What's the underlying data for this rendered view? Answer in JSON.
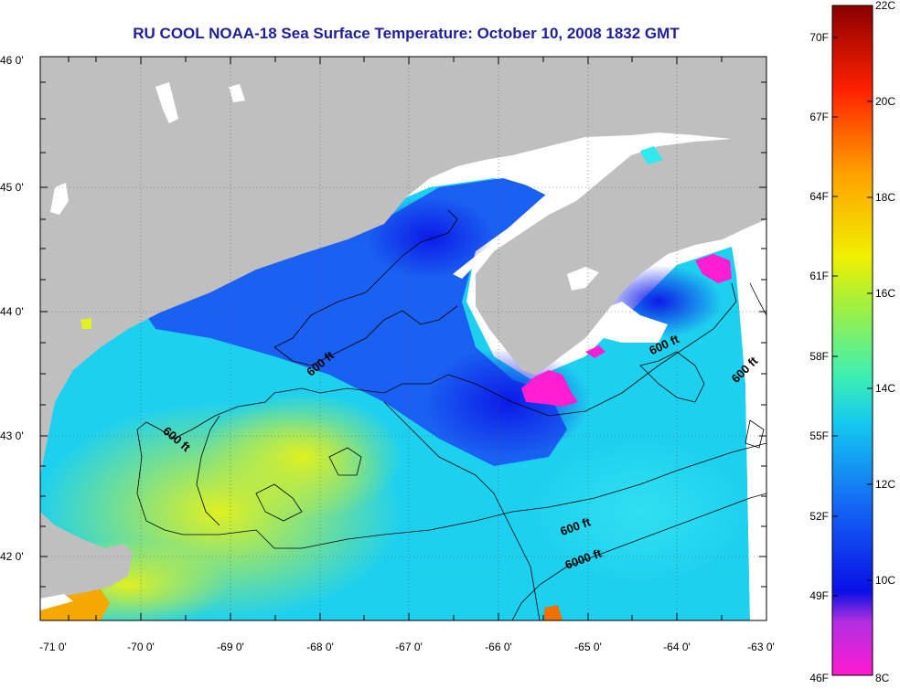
{
  "title": "RU COOL  NOAA-18  Sea Surface Temperature:  October 10, 2008 1832 GMT",
  "lat_labels": [
    "46 0'",
    "45 0'",
    "44 0'",
    "43 0'",
    "42 0'"
  ],
  "lon_labels": [
    "-71 0'",
    "-70 0'",
    "-69 0'",
    "-68 0'",
    "-67 0'",
    "-66 0'",
    "-65 0'",
    "-64 0'",
    "-63 0'"
  ],
  "contour_labels": [
    "600 ft",
    "600 ft",
    "600 ft",
    "600 ft",
    "600 ft",
    "6000 ft"
  ],
  "colorbar": {
    "celsius": [
      "22C",
      "20C",
      "18C",
      "16C",
      "14C",
      "12C",
      "10C",
      "8C"
    ],
    "fahrenheit": [
      "70F",
      "67F",
      "64F",
      "61F",
      "58F",
      "55F",
      "52F",
      "49F",
      "46F"
    ],
    "stops": [
      "#ff19d2",
      "#8a2be2",
      "#0a10e6",
      "#1464f5",
      "#14e8f0",
      "#9cf550",
      "#f0f000",
      "#ffa000",
      "#ff2000",
      "#8b0000"
    ]
  },
  "colors": {
    "land": "#bfbfbf",
    "title": "#1f1f9e",
    "contour": "#000000"
  }
}
